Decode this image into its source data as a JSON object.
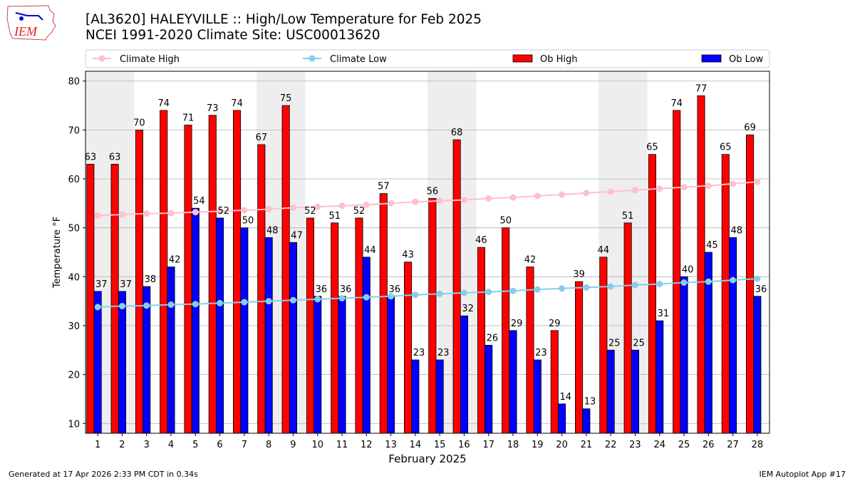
{
  "header": {
    "title_line1": "[AL3620] HALEYVILLE :: High/Low Temperature for Feb 2025",
    "title_line2": "NCEI 1991-2020 Climate Site: USC00013620",
    "logo_text": "IEM"
  },
  "footer": {
    "left": "Generated at 17 Apr 2026 2:33 PM CDT in 0.34s",
    "right": "IEM Autoplot App #17"
  },
  "colors": {
    "ob_high": "#ff0000",
    "ob_low": "#0000ff",
    "climate_high": "#ffc0cb",
    "climate_low": "#87ceeb",
    "weekend_band": "#eeeeee"
  },
  "chart_data": {
    "type": "bar",
    "xlabel": "February 2025",
    "ylabel": "Temperature °F",
    "xlim": [
      0.5,
      28.5
    ],
    "ylim": [
      8,
      82
    ],
    "yticks": [
      10,
      20,
      30,
      40,
      50,
      60,
      70,
      80
    ],
    "grid": "horizontal",
    "legend_placement": "top",
    "x": [
      1,
      2,
      3,
      4,
      5,
      6,
      7,
      8,
      9,
      10,
      11,
      12,
      13,
      14,
      15,
      16,
      17,
      18,
      19,
      20,
      21,
      22,
      23,
      24,
      25,
      26,
      27,
      28
    ],
    "shaded_weekends": [
      1,
      8,
      15,
      22
    ],
    "series": [
      {
        "name": "Climate High",
        "kind": "line",
        "values": [
          52.5,
          52.7,
          52.9,
          53.0,
          53.2,
          53.4,
          53.6,
          53.8,
          54.1,
          54.3,
          54.5,
          54.7,
          55.0,
          55.3,
          55.5,
          55.7,
          56.0,
          56.2,
          56.5,
          56.8,
          57.1,
          57.4,
          57.7,
          58.0,
          58.3,
          58.6,
          59.0,
          59.4
        ]
      },
      {
        "name": "Climate Low",
        "kind": "line",
        "values": [
          33.8,
          34.0,
          34.1,
          34.3,
          34.4,
          34.6,
          34.8,
          35.0,
          35.2,
          35.4,
          35.6,
          35.8,
          36.0,
          36.3,
          36.5,
          36.7,
          36.9,
          37.1,
          37.4,
          37.6,
          37.8,
          38.0,
          38.3,
          38.5,
          38.8,
          39.0,
          39.3,
          39.6
        ]
      },
      {
        "name": "Ob High",
        "kind": "bar",
        "values": [
          63,
          63,
          70,
          74,
          71,
          73,
          74,
          67,
          75,
          52,
          51,
          52,
          57,
          43,
          56,
          68,
          46,
          50,
          42,
          29,
          39,
          44,
          51,
          65,
          74,
          77,
          65,
          69
        ]
      },
      {
        "name": "Ob Low",
        "kind": "bar",
        "values": [
          37,
          37,
          38,
          42,
          54,
          52,
          50,
          48,
          47,
          36,
          36,
          44,
          36,
          23,
          23,
          32,
          26,
          29,
          23,
          14,
          13,
          25,
          25,
          31,
          40,
          45,
          48,
          36
        ]
      }
    ]
  }
}
